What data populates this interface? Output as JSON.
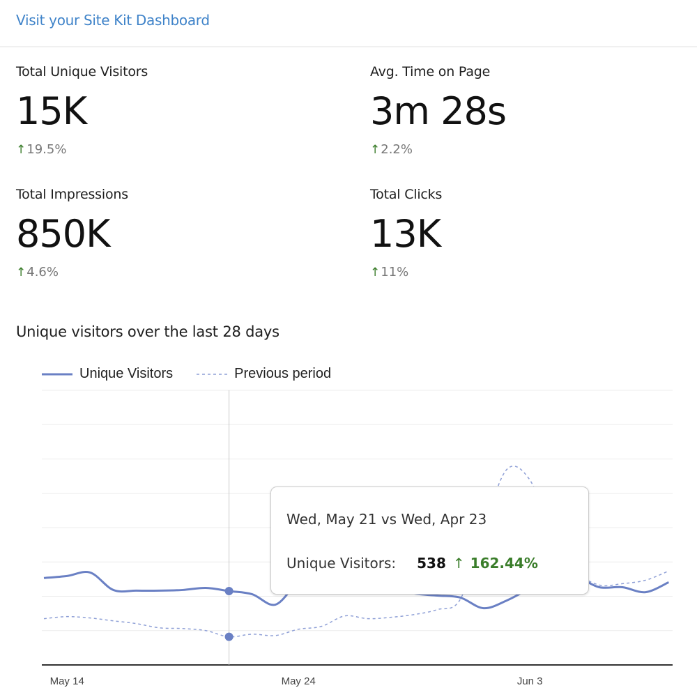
{
  "header": {
    "dashboard_link": "Visit your Site Kit Dashboard"
  },
  "metrics": [
    {
      "label": "Total Unique Visitors",
      "value": "15K",
      "change": "19.5%",
      "direction": "up"
    },
    {
      "label": "Avg. Time on Page",
      "value": "3m 28s",
      "change": "2.2%",
      "direction": "up"
    },
    {
      "label": "Total Impressions",
      "value": "850K",
      "change": "4.6%",
      "direction": "up"
    },
    {
      "label": "Total Clicks",
      "value": "13K",
      "change": "11%",
      "direction": "up"
    }
  ],
  "icons": {
    "up_arrow": "↑"
  },
  "colors": {
    "series": "#6a80c4",
    "positive": "#3a7d2a",
    "link": "#3f83c9"
  },
  "chart_data": {
    "type": "line",
    "title": "Unique visitors over the last 28 days",
    "legend": {
      "placement": "top-left",
      "entries": [
        "Unique Visitors",
        "Previous period"
      ]
    },
    "x": [
      "May 13",
      "May 14",
      "May 15",
      "May 16",
      "May 17",
      "May 18",
      "May 19",
      "May 20",
      "May 21",
      "May 22",
      "May 23",
      "May 24",
      "May 25",
      "May 26",
      "May 27",
      "May 28",
      "May 29",
      "May 30",
      "May 31",
      "Jun 1",
      "Jun 2",
      "Jun 3",
      "Jun 4",
      "Jun 5",
      "Jun 6",
      "Jun 7",
      "Jun 8",
      "Jun 9"
    ],
    "x_ticks": [
      "May 14",
      "May 24",
      "Jun 3"
    ],
    "ylim": [
      0,
      2000
    ],
    "y_grid_step": 250,
    "grid": true,
    "series": [
      {
        "name": "Unique Visitors",
        "style": "solid",
        "values": [
          633,
          648,
          673,
          546,
          541,
          541,
          546,
          561,
          538,
          515,
          439,
          600,
          640,
          650,
          620,
          560,
          520,
          505,
          490,
          413,
          469,
          556,
          633,
          640,
          566,
          566,
          530,
          602
        ]
      },
      {
        "name": "Previous period",
        "style": "dashed",
        "values": [
          337,
          352,
          342,
          321,
          301,
          270,
          265,
          250,
          205,
          224,
          214,
          260,
          281,
          357,
          337,
          347,
          367,
          403,
          480,
          990,
          1423,
          1347,
          939,
          684,
          582,
          592,
          617,
          684
        ]
      }
    ],
    "tooltip": {
      "hover_index": 8,
      "date_label": "Wed, May 21 vs Wed, Apr 23",
      "series_label": "Unique Visitors:",
      "value": "538",
      "change": "162.44%"
    }
  }
}
